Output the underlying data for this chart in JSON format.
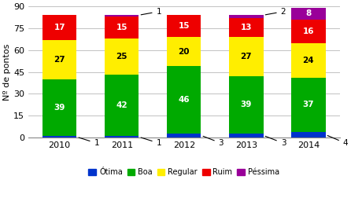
{
  "years": [
    "2010",
    "2011",
    "2012",
    "2013",
    "2014"
  ],
  "otima": [
    1,
    1,
    3,
    3,
    4
  ],
  "boa": [
    39,
    42,
    46,
    39,
    37
  ],
  "regular": [
    27,
    25,
    20,
    27,
    24
  ],
  "ruim": [
    17,
    15,
    15,
    13,
    16
  ],
  "pessima": [
    0,
    1,
    0,
    2,
    8
  ],
  "colors": {
    "otima": "#0033cc",
    "boa": "#00aa00",
    "regular": "#ffee00",
    "ruim": "#ee0000",
    "pessima": "#990099"
  },
  "ylabel": "Nº de pontos",
  "ylim": [
    0,
    90
  ],
  "yticks": [
    0,
    15,
    30,
    45,
    60,
    75,
    90
  ],
  "bar_width": 0.55,
  "annotation_fontsize": 7.5,
  "label_fontsize": 8
}
